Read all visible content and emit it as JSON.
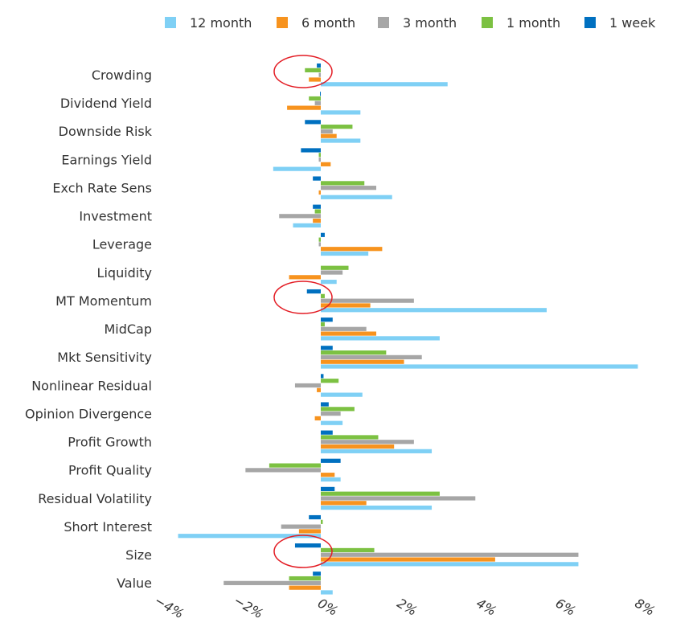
{
  "chart_data": {
    "type": "bar",
    "orientation": "horizontal",
    "categories": [
      "Crowding",
      "Dividend Yield",
      "Downside Risk",
      "Earnings Yield",
      "Exch Rate Sens",
      "Investment",
      "Leverage",
      "Liquidity",
      "MT Momentum",
      "MidCap",
      "Mkt Sensitivity",
      "Nonlinear Residual",
      "Opinion Divergence",
      "Profit Growth",
      "Profit Quality",
      "Residual Volatility",
      "Short Interest",
      "Size",
      "Value"
    ],
    "series": [
      {
        "name": "12 month",
        "color": "#7fd0f5",
        "values": [
          3.2,
          1.0,
          1.0,
          -1.2,
          1.8,
          -0.7,
          1.2,
          0.4,
          5.7,
          3.0,
          8.0,
          1.05,
          0.55,
          2.8,
          0.5,
          2.8,
          -3.6,
          6.5,
          0.3
        ]
      },
      {
        "name": "6 month",
        "color": "#f7931e",
        "values": [
          -0.3,
          -0.85,
          0.4,
          0.25,
          -0.05,
          -0.2,
          1.55,
          -0.8,
          1.25,
          1.4,
          2.1,
          -0.1,
          -0.15,
          1.85,
          0.35,
          1.15,
          -0.55,
          4.4,
          -0.8
        ]
      },
      {
        "name": "3 month",
        "color": "#a6a6a6",
        "values": [
          -0.05,
          -0.15,
          0.3,
          -0.05,
          1.4,
          -1.05,
          -0.05,
          0.55,
          2.35,
          1.15,
          2.55,
          -0.65,
          0.5,
          2.35,
          -1.9,
          3.9,
          -1.0,
          6.5,
          -2.45
        ]
      },
      {
        "name": "1 month",
        "color": "#7cc142",
        "values": [
          -0.4,
          -0.3,
          0.8,
          -0.05,
          1.1,
          -0.15,
          -0.05,
          0.7,
          0.1,
          0.1,
          1.65,
          0.45,
          0.85,
          1.45,
          -1.3,
          3.0,
          0.05,
          1.35,
          -0.8
        ]
      },
      {
        "name": "1 week",
        "color": "#0070c0",
        "values": [
          -0.1,
          -0.02,
          -0.4,
          -0.5,
          -0.2,
          -0.2,
          0.1,
          0.0,
          -0.35,
          0.3,
          0.3,
          0.07,
          0.2,
          0.3,
          0.5,
          0.35,
          -0.3,
          -0.65,
          -0.2
        ]
      }
    ],
    "x_ticks": [
      "−4%",
      "−2%",
      "0%",
      "2%",
      "4%",
      "6%",
      "8%"
    ],
    "x_tick_values": [
      -4,
      -2,
      0,
      2,
      4,
      6,
      8
    ],
    "xlim": [
      -4,
      8
    ],
    "legend_position": "top",
    "highlighted_categories": [
      "Crowding",
      "MT Momentum",
      "Size"
    ],
    "highlight_color": "#e31b23",
    "grid": false
  }
}
